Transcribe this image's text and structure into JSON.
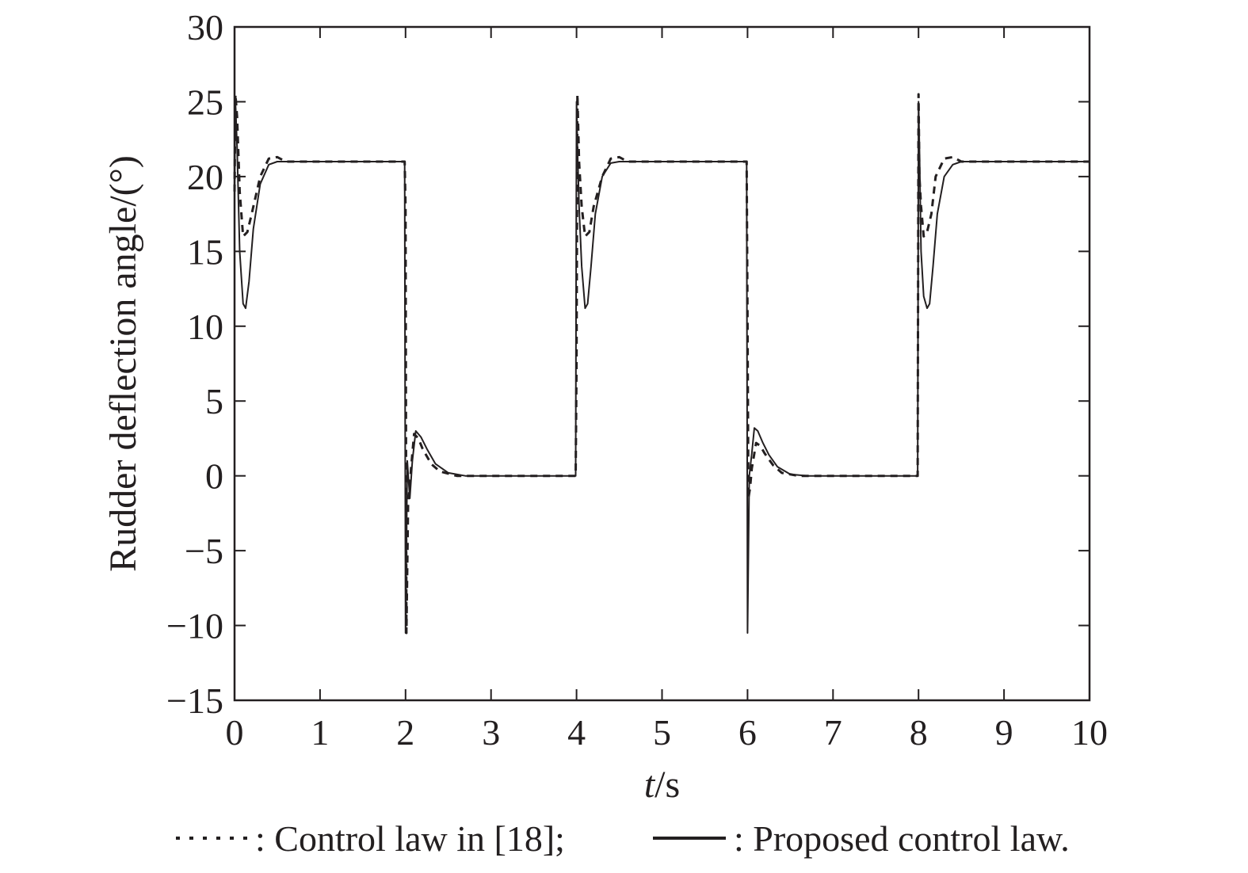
{
  "chart_data": {
    "type": "line",
    "title": "",
    "xlabel_italic": "t",
    "xlabel_unit": "/s",
    "ylabel": "Rudder deflection angle/(°)",
    "xlim": [
      0,
      10
    ],
    "ylim": [
      -15,
      30
    ],
    "xticks": [
      0,
      1,
      2,
      3,
      4,
      5,
      6,
      7,
      8,
      9,
      10
    ],
    "yticks": [
      -15,
      -10,
      -5,
      0,
      5,
      10,
      15,
      20,
      25,
      30
    ],
    "ytick_labels": [
      "−15",
      "−10",
      "−5",
      "0",
      "5",
      "10",
      "15",
      "20",
      "25",
      "30"
    ],
    "grid": false,
    "legend_placement": "bottom",
    "series": [
      {
        "name": "Control law in [18]",
        "style": "dashed",
        "color": "#231f20",
        "x": [
          0,
          0.01,
          0.03,
          0.06,
          0.1,
          0.15,
          0.2,
          0.3,
          0.4,
          0.5,
          0.6,
          1.99,
          2.0,
          2.01,
          2.03,
          2.05,
          2.08,
          2.1,
          2.15,
          2.2,
          2.3,
          2.4,
          2.6,
          3.99,
          4.0,
          4.01,
          4.03,
          4.06,
          4.1,
          4.15,
          4.2,
          4.3,
          4.4,
          4.5,
          4.6,
          5.99,
          6.0,
          6.01,
          6.03,
          6.05,
          6.08,
          6.1,
          6.15,
          6.2,
          6.3,
          6.4,
          6.6,
          7.99,
          8.0,
          8.01,
          8.03,
          8.06,
          8.1,
          8.15,
          8.2,
          8.3,
          8.4,
          8.5,
          8.6,
          10.0
        ],
        "y": [
          19,
          25.5,
          24,
          19,
          16,
          16.3,
          17.5,
          20,
          21.2,
          21.3,
          21,
          21,
          18,
          -10.5,
          -2,
          -0.5,
          1.5,
          2.8,
          2.5,
          1.8,
          0.8,
          0.3,
          0,
          0,
          7.5,
          25.5,
          21,
          18,
          16,
          16.3,
          18,
          20,
          21.2,
          21.3,
          21,
          21,
          10.5,
          -1.5,
          -0.8,
          0.5,
          1.5,
          2.2,
          2.0,
          1.5,
          0.7,
          0.2,
          0,
          0,
          25.5,
          20,
          18,
          16,
          16.3,
          17.5,
          20,
          21.2,
          21.3,
          21,
          21,
          21
        ]
      },
      {
        "name": "Proposed control law",
        "style": "solid",
        "color": "#231f20",
        "x": [
          0,
          0.01,
          0.03,
          0.06,
          0.1,
          0.13,
          0.17,
          0.22,
          0.3,
          0.4,
          0.5,
          0.6,
          1.99,
          2.0,
          2.02,
          2.05,
          2.08,
          2.12,
          2.18,
          2.25,
          2.35,
          2.5,
          2.7,
          3.99,
          4.0,
          4.01,
          4.03,
          4.06,
          4.1,
          4.13,
          4.17,
          4.22,
          4.3,
          4.4,
          4.5,
          4.6,
          5.99,
          6.0,
          6.02,
          6.05,
          6.08,
          6.12,
          6.18,
          6.25,
          6.35,
          6.5,
          6.7,
          7.99,
          8.0,
          8.01,
          8.03,
          8.06,
          8.1,
          8.13,
          8.17,
          8.22,
          8.3,
          8.4,
          8.5,
          8.6,
          10.0
        ],
        "y": [
          19,
          25,
          22,
          15,
          11.5,
          11.2,
          13,
          16.5,
          19.5,
          20.8,
          21,
          21,
          21,
          -10.5,
          1,
          -1.5,
          1,
          3,
          2.6,
          1.8,
          0.8,
          0.2,
          0,
          0,
          25,
          22,
          18,
          14,
          11.2,
          11.5,
          14,
          17.5,
          20,
          20.9,
          21,
          21,
          21,
          -10.5,
          0,
          1.5,
          3.2,
          3,
          2.2,
          1.4,
          0.6,
          0.1,
          0,
          0,
          25,
          22,
          15,
          12,
          11.2,
          11.5,
          14,
          17.5,
          20,
          20.8,
          21,
          21,
          21
        ]
      }
    ]
  },
  "legend": {
    "items": [
      {
        "label": ": Control law in [18];",
        "style": "dashed"
      },
      {
        "label": ": Proposed control law.",
        "style": "solid"
      }
    ]
  }
}
